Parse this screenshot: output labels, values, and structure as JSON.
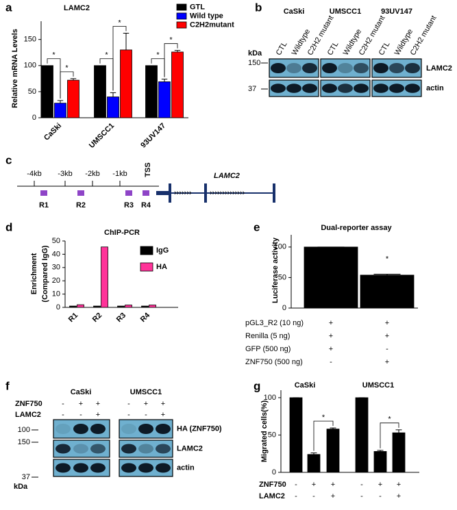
{
  "chart_data": [
    {
      "panel": "a",
      "type": "bar",
      "title": "LAMC2",
      "ylabel": "Relative mRNA Levels",
      "categories": [
        "CaSki",
        "UMSCC1",
        "93UV147"
      ],
      "series": [
        {
          "name": "GTL",
          "color": "#000000",
          "values": [
            100,
            100,
            100
          ]
        },
        {
          "name": "Wild type",
          "color": "#0000ff",
          "values": [
            28,
            40,
            69
          ],
          "errors": [
            5,
            8,
            5
          ]
        },
        {
          "name": "C2H2mutant",
          "color": "#ff0000",
          "values": [
            72,
            130,
            126
          ],
          "errors": [
            3,
            32,
            3
          ]
        }
      ],
      "ylim": [
        0,
        185
      ],
      "yticks": [
        0,
        50,
        100,
        150
      ],
      "annotations": [
        "*",
        "*",
        "*",
        "*",
        "*",
        "*"
      ]
    },
    {
      "panel": "d",
      "type": "bar",
      "title": "ChIP-PCR",
      "ylabel": [
        "Enrichment",
        "(Compared IgG)"
      ],
      "categories": [
        "R1",
        "R2",
        "R3",
        "R4"
      ],
      "series": [
        {
          "name": "IgG",
          "color": "#000000",
          "values": [
            1,
            1,
            1,
            1
          ]
        },
        {
          "name": "HA",
          "color": "#ff3399",
          "values": [
            2,
            45.5,
            1.8,
            1.8
          ]
        }
      ],
      "ylim": [
        0,
        50
      ],
      "yticks": [
        0,
        10,
        20,
        30,
        40,
        50
      ]
    },
    {
      "panel": "e",
      "type": "bar",
      "title": "Dual-reporter assay",
      "ylabel": "Luciferase activity",
      "categories": [
        null,
        null
      ],
      "values": [
        100,
        54
      ],
      "errors": [
        0,
        1.5
      ],
      "color": "#000000",
      "ylim": [
        0,
        120
      ],
      "yticks": [
        0,
        50,
        100
      ],
      "annotations": [
        "*"
      ],
      "conditions": [
        {
          "label": "pGL3_R2 (10 ng)",
          "marks": [
            "+",
            "+"
          ]
        },
        {
          "label": "Renilla (5 ng)",
          "marks": [
            "+",
            "+"
          ]
        },
        {
          "label": "GFP (500 ng)",
          "marks": [
            "+",
            "-"
          ]
        },
        {
          "label": "ZNF750 (500 ng)",
          "marks": [
            "-",
            "+"
          ]
        }
      ]
    },
    {
      "panel": "g",
      "type": "bar",
      "ylabel": "Migrated cells(%)",
      "groups": [
        "CaSki",
        "UMSCC1"
      ],
      "categories": [
        null,
        null,
        null,
        null,
        null,
        null
      ],
      "values": [
        100,
        24,
        58,
        100,
        28,
        53
      ],
      "errors": [
        0,
        2,
        1.5,
        0,
        1.5,
        4
      ],
      "color": "#000000",
      "ylim": [
        0,
        110
      ],
      "yticks": [
        0,
        50,
        100
      ],
      "annotations": [
        "*",
        "*"
      ],
      "conditions": [
        {
          "label": "ZNF750",
          "marks": [
            "-",
            "+",
            "+",
            "-",
            "+",
            "+"
          ]
        },
        {
          "label": "LAMC2",
          "marks": [
            "-",
            "-",
            "+",
            "-",
            "-",
            "+"
          ]
        }
      ]
    }
  ],
  "blot_b": {
    "panel": "b",
    "groups": [
      "CaSki",
      "UMSCC1",
      "93UV147"
    ],
    "lanes": [
      "CTL",
      "Wildtype",
      "C2H2 mutant"
    ],
    "unit": "kDa",
    "markers": [
      150,
      37
    ],
    "rows": [
      "LAMC2",
      "actin"
    ]
  },
  "diagram_c": {
    "panel": "c",
    "positions": [
      "-4kb",
      "-3kb",
      "-2kb",
      "-1kb"
    ],
    "tss": "TSS",
    "gene": "LAMC2",
    "regions": [
      "R1",
      "R2",
      "R3",
      "R4"
    ]
  },
  "blot_f": {
    "panel": "f",
    "groups": [
      "CaSki",
      "UMSCC1"
    ],
    "conditions": [
      {
        "label": "ZNF750",
        "marks": [
          "-",
          "+",
          "+",
          "-",
          "+",
          "+"
        ]
      },
      {
        "label": "LAMC2",
        "marks": [
          "-",
          "-",
          "+",
          "-",
          "-",
          "+"
        ]
      }
    ],
    "markers": [
      100,
      150,
      37
    ],
    "unit": "kDa",
    "rows": [
      "HA (ZNF750)",
      "LAMC2",
      "actin"
    ]
  }
}
